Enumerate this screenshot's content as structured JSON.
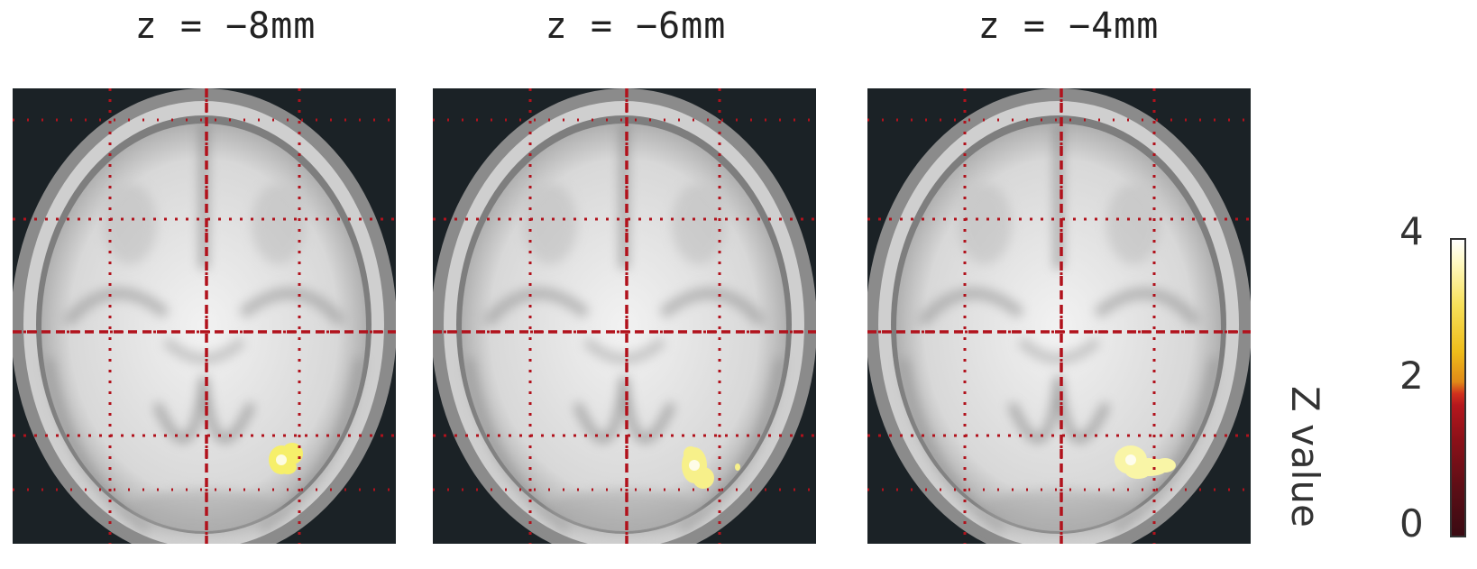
{
  "slices": [
    {
      "title": "z = −8mm",
      "blob_color": "#f6ef6a"
    },
    {
      "title": "z = −6mm",
      "blob_color": "#f7f08a"
    },
    {
      "title": "z = −4mm",
      "blob_color": "#f9f5a6"
    }
  ],
  "colorbar": {
    "label": "Z value",
    "ticks": [
      "4",
      "2",
      "0"
    ],
    "min": 0,
    "max": 4,
    "colors": [
      "#3a0a12",
      "#b4171d",
      "#e08a18",
      "#f7e05a",
      "#ffffff"
    ]
  },
  "grid_color": "#b1121c"
}
